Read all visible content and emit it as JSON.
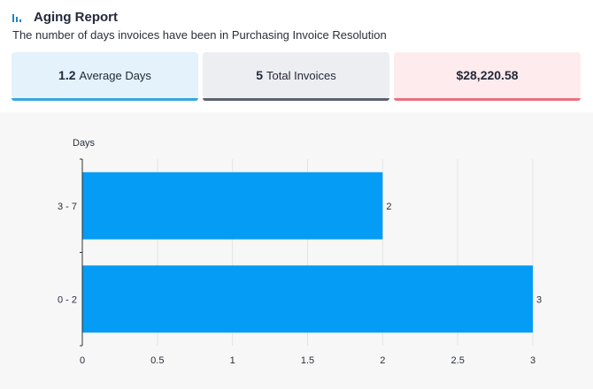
{
  "header": {
    "title": "Aging Report",
    "subtitle": "The number of days invoices have been in Purchasing Invoice Resolution",
    "icon": "bar-chart-icon"
  },
  "summary": {
    "average": {
      "value": "1.2",
      "label": "Average Days"
    },
    "total": {
      "value": "5",
      "label": "Total Invoices"
    },
    "amount": {
      "value": "$28,220.58"
    }
  },
  "colors": {
    "bar": "#049cf4",
    "accent_blue": "#35a7db",
    "accent_gray": "#5b616e",
    "accent_red": "#e9707d"
  },
  "chart_data": {
    "type": "bar",
    "orientation": "horizontal",
    "title": "",
    "xlabel": "",
    "ylabel": "Days",
    "categories": [
      "3 - 7",
      "0 - 2"
    ],
    "values": [
      2,
      3
    ],
    "data_labels": [
      "2",
      "3"
    ],
    "xlim": [
      0,
      3
    ],
    "xticks": [
      "0",
      "0.5",
      "1",
      "1.5",
      "2",
      "2.5",
      "3"
    ],
    "grid": true,
    "legend": "none"
  }
}
